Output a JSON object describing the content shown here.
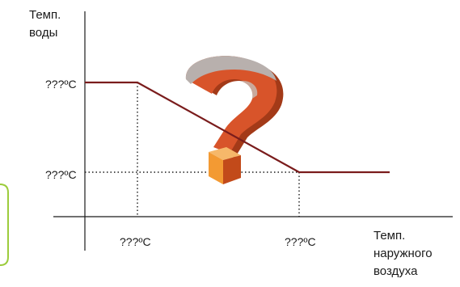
{
  "labels": {
    "y_title": "Темп. воды",
    "x_title": "Темп. наружного воздуха",
    "y_high": "???ºC",
    "y_low": "???ºC",
    "x_low": "???ºC",
    "x_high": "???ºC"
  },
  "colors": {
    "axis": "#1a1a1a",
    "curve": "#7a1c1c",
    "side_box": "#9ccc3c",
    "qmark_front": "#d8542a",
    "qmark_side": "#a33a18",
    "qmark_top": "#b8b0ad",
    "qmark_dot": "#f39a33"
  },
  "icons": {
    "center": "question-mark-3d-icon"
  }
}
